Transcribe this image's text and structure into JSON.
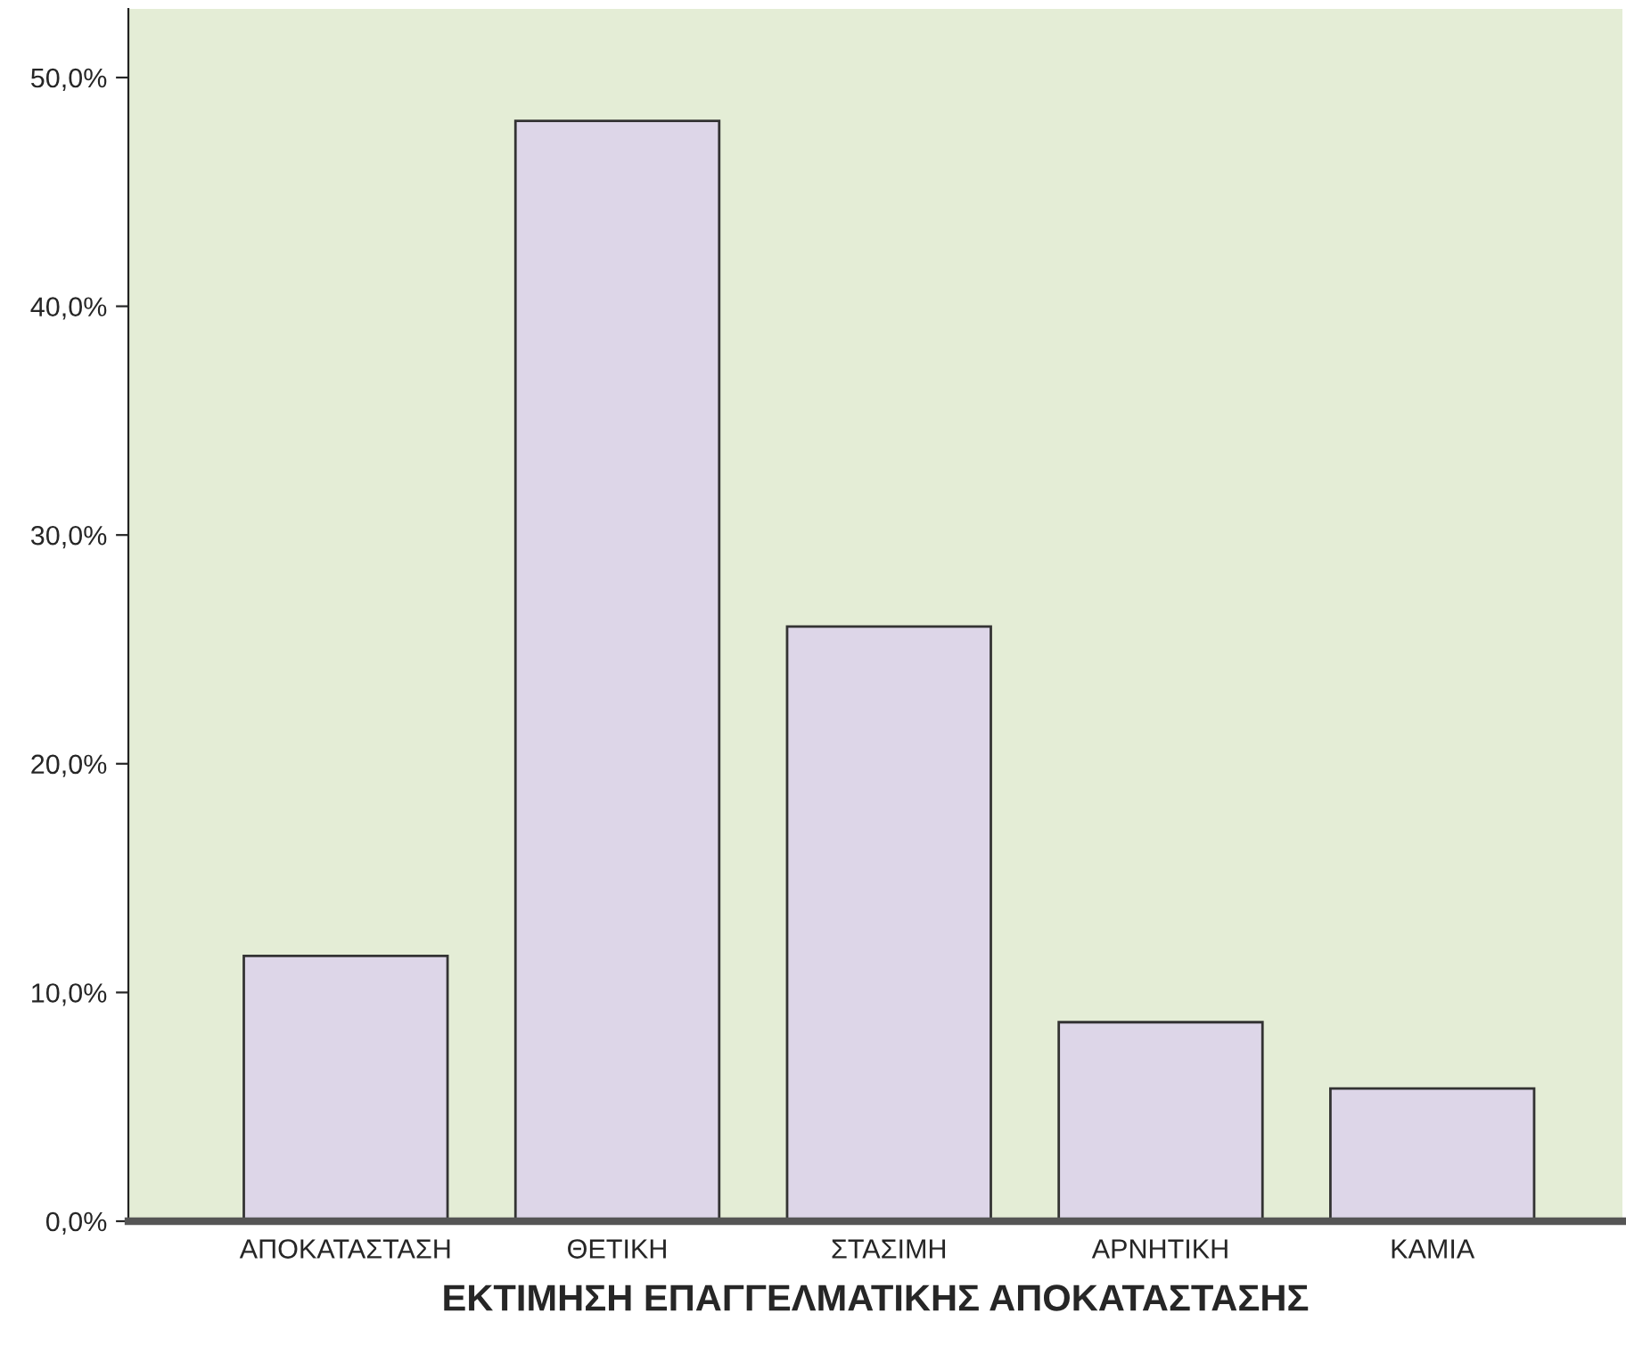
{
  "chart_data": {
    "type": "bar",
    "xlabel": "ΕΚΤΙΜΗΣΗ ΕΠΑΓΓΕΛΜΑΤΙΚΗΣ ΑΠΟΚΑΤΑΣΤΑΣΗΣ",
    "categories": [
      "ΑΠΟΚΑΤΑΣΤΑΣΗ",
      "ΘΕΤΙΚΗ",
      "ΣΤΑΣΙΜΗ",
      "ΑΡΝΗΤΙΚΗ",
      "ΚΑΜΙΑ"
    ],
    "values": [
      11.6,
      48.1,
      26.0,
      8.7,
      5.8
    ],
    "color": "#ddd6e8",
    "ylim": [
      0,
      53
    ],
    "yticks": [
      {
        "value": 0,
        "label": "0,0%"
      },
      {
        "value": 10,
        "label": "10,0%"
      },
      {
        "value": 20,
        "label": "20,0%"
      },
      {
        "value": 30,
        "label": "30,0%"
      },
      {
        "value": 40,
        "label": "40,0%"
      },
      {
        "value": 50,
        "label": "50,0%"
      }
    ],
    "grid": false
  }
}
